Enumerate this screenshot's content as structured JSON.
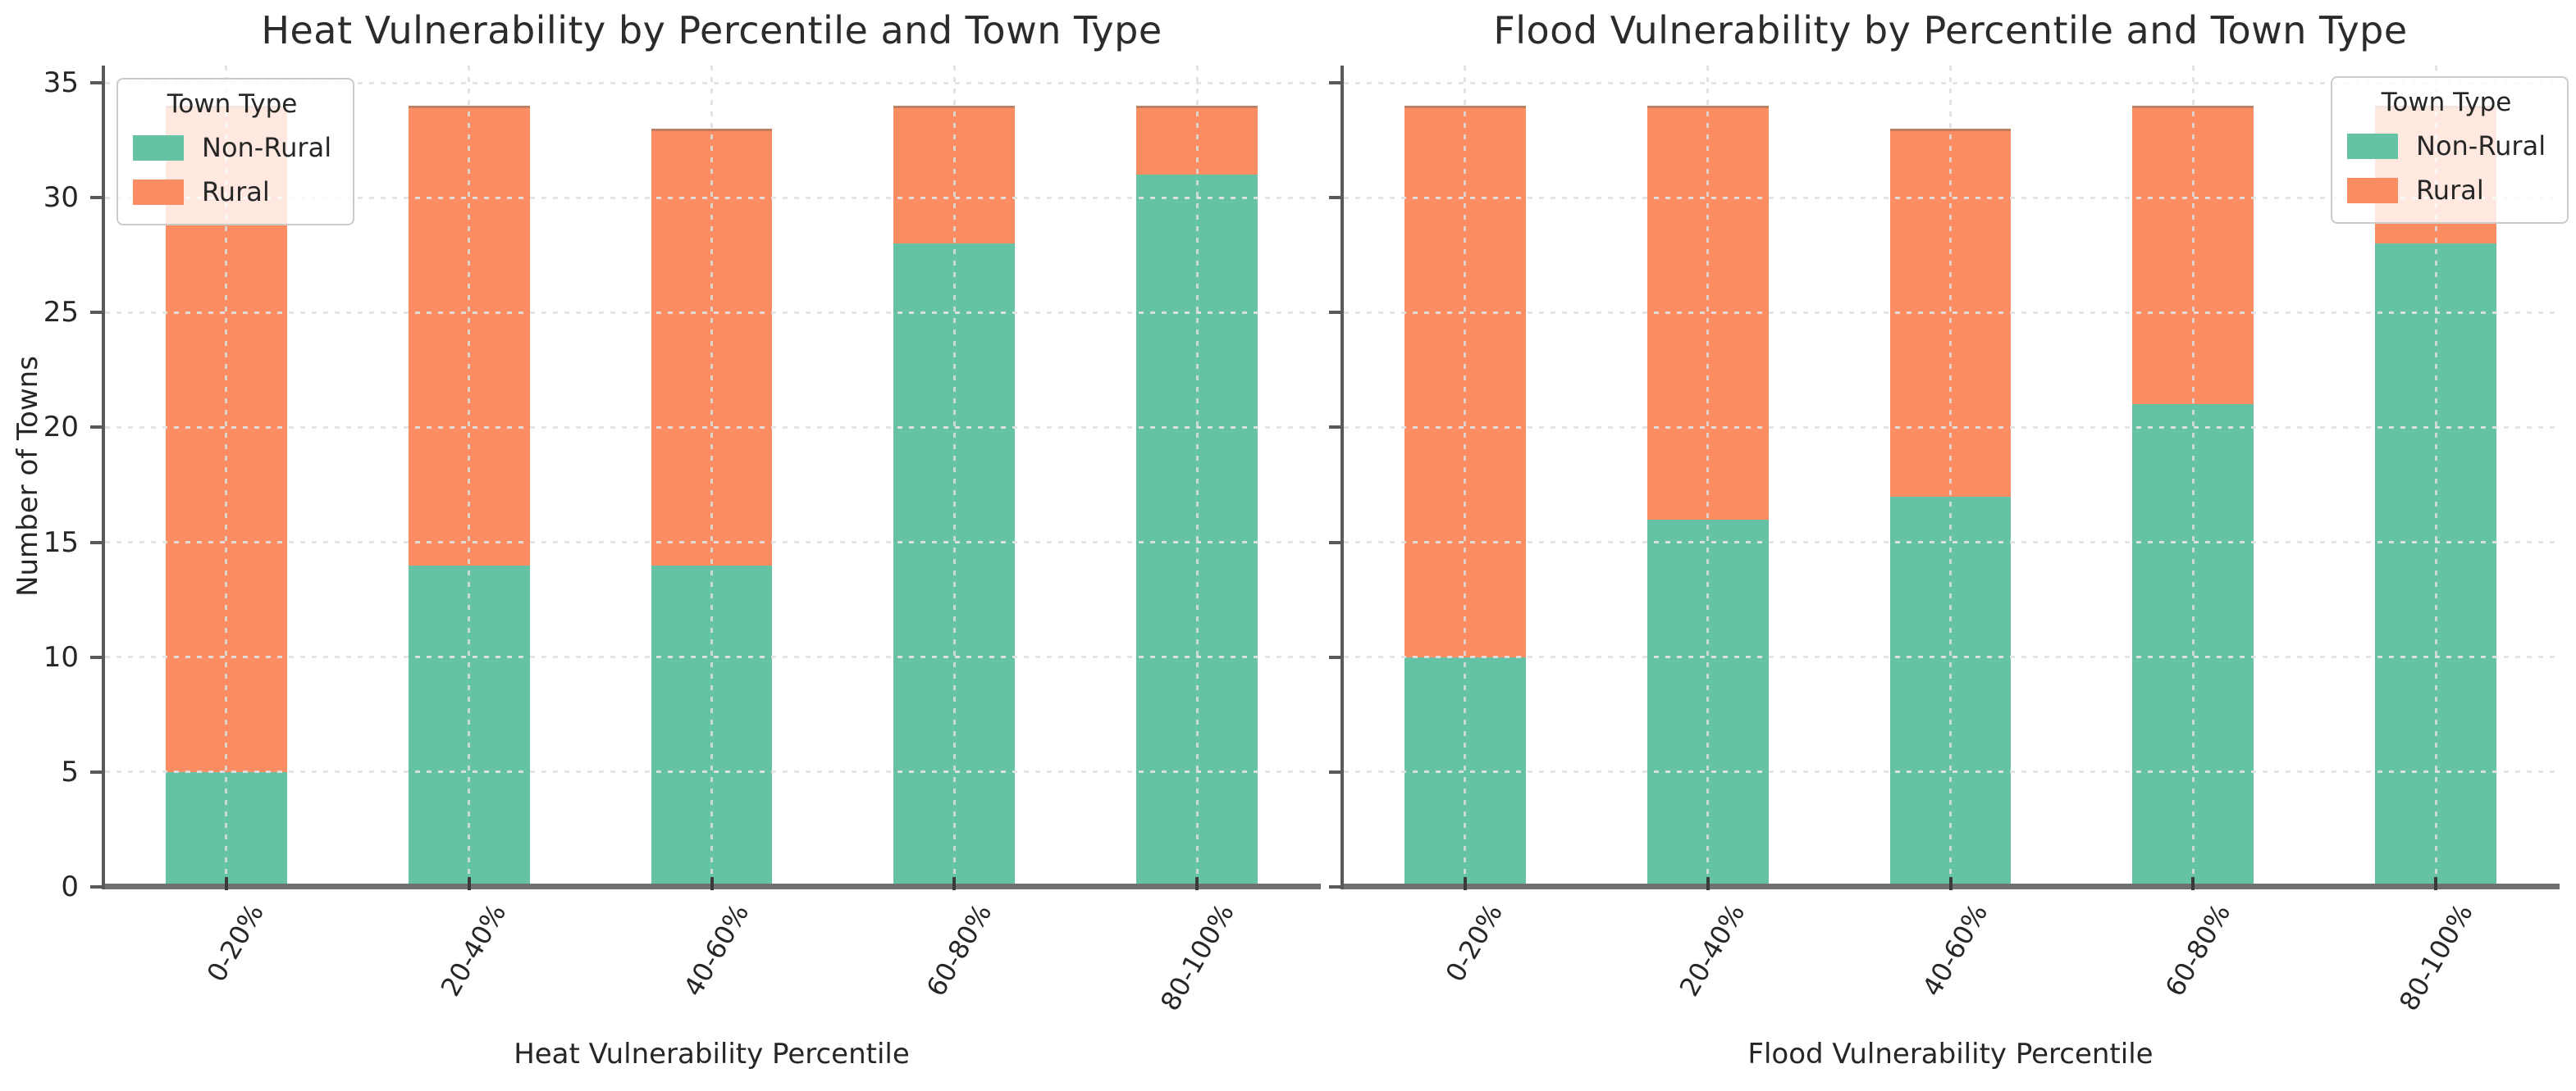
{
  "figure": {
    "background": "#ffffff",
    "text_color": "#262626",
    "grid_color": "#e2e2e2",
    "baseline_color": "#707070",
    "spine_color": "#595959"
  },
  "legend": {
    "title": "Town Type",
    "entries": [
      {
        "label": "Non-Rural",
        "color": "#66c2a5"
      },
      {
        "label": "Rural",
        "color": "#fc8d62"
      }
    ]
  },
  "chart_data": [
    {
      "type": "bar",
      "stacked": true,
      "title": "Heat Vulnerability by Percentile and Town Type",
      "xlabel": "Heat Vulnerability Percentile",
      "ylabel": "Number of Towns",
      "categories": [
        "0-20%",
        "20-40%",
        "40-60%",
        "60-80%",
        "80-100%"
      ],
      "series": [
        {
          "name": "Non-Rural",
          "color": "#66c2a5",
          "values": [
            5,
            14,
            14,
            28,
            31
          ]
        },
        {
          "name": "Rural",
          "color": "#fc8d62",
          "values": [
            29,
            20,
            19,
            6,
            3
          ]
        }
      ],
      "stack_totals": [
        34,
        34,
        33,
        34,
        34
      ],
      "ylim": [
        0,
        35.75
      ],
      "yticks": [
        0,
        5,
        10,
        15,
        20,
        25,
        30,
        35
      ],
      "grid": "dashed-both-over-bars",
      "legend_position": "upper-left"
    },
    {
      "type": "bar",
      "stacked": true,
      "title": "Flood Vulnerability by Percentile and Town Type",
      "xlabel": "Flood Vulnerability Percentile",
      "ylabel": "",
      "categories": [
        "0-20%",
        "20-40%",
        "40-60%",
        "60-80%",
        "80-100%"
      ],
      "series": [
        {
          "name": "Non-Rural",
          "color": "#66c2a5",
          "values": [
            10,
            16,
            17,
            21,
            28
          ]
        },
        {
          "name": "Rural",
          "color": "#fc8d62",
          "values": [
            24,
            18,
            16,
            13,
            6
          ]
        }
      ],
      "stack_totals": [
        34,
        34,
        33,
        34,
        34
      ],
      "ylim": [
        0,
        35.75
      ],
      "yticks": [
        0,
        5,
        10,
        15,
        20,
        25,
        30,
        35
      ],
      "grid": "dashed-both-over-bars",
      "legend_position": "upper-right"
    }
  ]
}
